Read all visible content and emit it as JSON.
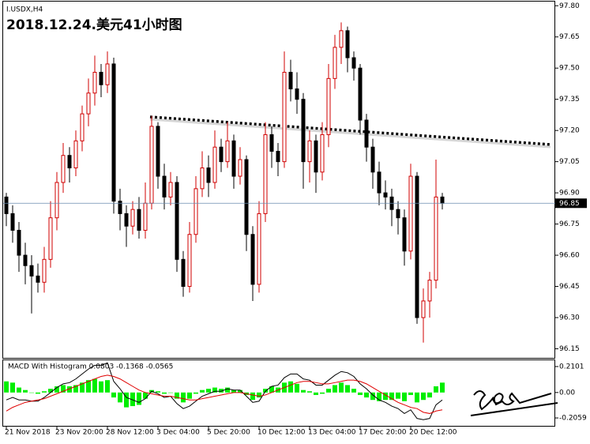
{
  "chart_data": [
    {
      "type": "candlestick",
      "title": "I.USDX,H4",
      "annotation": "2018.12.24.美元41小时图",
      "categories": [
        "21 Nov 2018",
        null,
        null,
        null,
        null,
        null,
        null,
        null,
        "23 Nov 20:00",
        null,
        null,
        null,
        null,
        null,
        null,
        null,
        "28 Nov 12:00",
        null,
        null,
        null,
        null,
        null,
        null,
        null,
        "3 Dec 04:00",
        null,
        null,
        null,
        null,
        null,
        null,
        null,
        "5 Dec 20:00",
        null,
        null,
        null,
        null,
        null,
        null,
        null,
        "10 Dec 12:00",
        null,
        null,
        null,
        null,
        null,
        null,
        null,
        "13 Dec 04:00",
        null,
        null,
        null,
        null,
        null,
        null,
        null,
        "17 Dec 20:00",
        null,
        null,
        null,
        null,
        null,
        null,
        null,
        "20 Dec 12:00",
        null,
        null,
        null,
        null,
        null
      ],
      "open": [
        96.88,
        96.8,
        96.72,
        96.6,
        96.55,
        96.5,
        96.47,
        96.58,
        96.78,
        96.95,
        97.08,
        97.02,
        97.15,
        97.28,
        97.38,
        97.48,
        97.42,
        97.52,
        96.86,
        96.8,
        96.74,
        96.82,
        96.72,
        96.85,
        97.22,
        96.98,
        96.88,
        96.95,
        96.58,
        96.45,
        96.7,
        96.92,
        97.02,
        96.95,
        97.12,
        97.05,
        97.15,
        96.98,
        97.06,
        96.7,
        96.46,
        96.8,
        97.18,
        97.1,
        97.05,
        97.48,
        97.4,
        97.35,
        97.05,
        97.15,
        97.0,
        97.18,
        97.45,
        97.6,
        97.68,
        97.55,
        97.5,
        97.25,
        97.12,
        97.0,
        96.9,
        96.88,
        96.82,
        96.78,
        96.62,
        96.98,
        96.3,
        96.38,
        96.48,
        96.88
      ],
      "high": [
        96.9,
        96.84,
        96.76,
        96.66,
        96.6,
        96.56,
        96.64,
        96.86,
        97.0,
        97.14,
        97.12,
        97.2,
        97.32,
        97.45,
        97.56,
        97.52,
        97.58,
        97.55,
        96.92,
        96.84,
        96.86,
        96.88,
        96.95,
        97.27,
        97.24,
        97.04,
        97.0,
        96.98,
        96.62,
        96.76,
        96.98,
        97.1,
        97.08,
        97.2,
        97.16,
        97.24,
        97.18,
        97.12,
        97.08,
        96.74,
        96.86,
        97.24,
        97.22,
        97.14,
        97.58,
        97.54,
        97.48,
        97.38,
        97.2,
        97.18,
        97.24,
        97.52,
        97.66,
        97.72,
        97.7,
        97.58,
        97.52,
        97.28,
        97.16,
        97.05,
        96.96,
        96.92,
        96.86,
        96.82,
        97.04,
        97.0,
        96.44,
        96.52,
        97.06,
        96.9
      ],
      "low": [
        96.74,
        96.66,
        96.52,
        96.46,
        96.32,
        96.42,
        96.42,
        96.54,
        96.72,
        96.9,
        96.95,
        96.98,
        97.1,
        97.22,
        97.32,
        97.36,
        97.38,
        96.8,
        96.72,
        96.64,
        96.7,
        96.68,
        96.68,
        96.82,
        96.92,
        96.82,
        96.84,
        96.52,
        96.4,
        96.42,
        96.66,
        96.88,
        96.88,
        96.92,
        97.0,
        97.02,
        96.92,
        96.94,
        96.62,
        96.38,
        96.42,
        96.76,
        97.02,
        96.98,
        97.02,
        97.34,
        97.28,
        96.92,
        96.95,
        96.9,
        96.96,
        97.12,
        97.4,
        97.52,
        97.48,
        97.44,
        97.18,
        97.05,
        96.92,
        96.84,
        96.82,
        96.74,
        96.7,
        96.55,
        96.58,
        96.27,
        96.18,
        96.3,
        96.44,
        96.82
      ],
      "close": [
        96.8,
        96.72,
        96.6,
        96.55,
        96.5,
        96.47,
        96.58,
        96.78,
        96.95,
        97.08,
        97.02,
        97.15,
        97.28,
        97.38,
        97.48,
        97.42,
        97.52,
        96.86,
        96.8,
        96.74,
        96.82,
        96.72,
        96.85,
        97.22,
        96.98,
        96.88,
        96.95,
        96.58,
        96.45,
        96.7,
        96.92,
        97.02,
        96.95,
        97.12,
        97.05,
        97.15,
        96.98,
        97.06,
        96.7,
        96.46,
        96.8,
        97.18,
        97.1,
        97.05,
        97.48,
        97.4,
        97.35,
        97.05,
        97.15,
        97.0,
        97.18,
        97.45,
        97.6,
        97.68,
        97.55,
        97.5,
        97.25,
        97.12,
        97.0,
        96.9,
        96.88,
        96.82,
        96.78,
        96.62,
        96.98,
        96.3,
        96.38,
        96.48,
        96.88,
        96.85
      ],
      "up_color": "#d00000",
      "down_color": "#000000",
      "last_price": 96.85,
      "ylim": [
        96.11,
        97.82
      ],
      "yticks": [
        {
          "value": 97.8,
          "label": "97.80"
        },
        97.65,
        {
          "value": 97.5,
          "label": "97.50"
        },
        97.35,
        {
          "value": 97.2,
          "label": "97.20"
        },
        97.05,
        {
          "value": 96.9,
          "label": "96.90"
        },
        96.75,
        {
          "value": 96.6,
          "label": "96.60"
        },
        96.45,
        {
          "value": 96.3,
          "label": "96.30"
        },
        96.15
      ]
    },
    {
      "type": "macd",
      "title": "MACD With Histogram 0.0803 -0.1368 -0.0565",
      "series": [
        {
          "kind": "histogram",
          "color": "#00ee00",
          "values": [
            0.09,
            0.08,
            0.04,
            0.02,
            0.0,
            -0.01,
            0.01,
            0.03,
            0.05,
            0.06,
            0.05,
            0.06,
            0.08,
            0.1,
            0.11,
            0.09,
            0.1,
            -0.04,
            -0.08,
            -0.12,
            -0.11,
            -0.1,
            -0.05,
            0.02,
            0.01,
            -0.01,
            0.0,
            -0.05,
            -0.08,
            -0.05,
            -0.01,
            0.02,
            0.03,
            0.04,
            0.03,
            0.04,
            0.02,
            0.02,
            -0.02,
            -0.06,
            -0.04,
            0.03,
            0.05,
            0.04,
            0.08,
            0.09,
            0.07,
            0.02,
            0.01,
            -0.02,
            -0.01,
            0.03,
            0.06,
            0.08,
            0.06,
            0.03,
            -0.02,
            -0.04,
            -0.06,
            -0.07,
            -0.06,
            -0.06,
            -0.05,
            -0.07,
            -0.02,
            -0.08,
            -0.06,
            -0.04,
            0.05,
            0.08
          ]
        },
        {
          "kind": "line",
          "color": "#000000",
          "values": [
            -0.06,
            -0.04,
            -0.06,
            -0.06,
            -0.07,
            -0.07,
            -0.04,
            0.0,
            0.04,
            0.07,
            0.08,
            0.11,
            0.15,
            0.19,
            0.22,
            0.22,
            0.24,
            0.09,
            0.03,
            -0.04,
            -0.06,
            -0.08,
            -0.05,
            0.01,
            -0.01,
            -0.04,
            -0.03,
            -0.09,
            -0.13,
            -0.11,
            -0.07,
            -0.03,
            -0.01,
            0.01,
            0.01,
            0.03,
            0.02,
            0.02,
            -0.03,
            -0.08,
            -0.07,
            0.01,
            0.05,
            0.06,
            0.12,
            0.15,
            0.15,
            0.11,
            0.1,
            0.06,
            0.06,
            0.1,
            0.14,
            0.17,
            0.16,
            0.13,
            0.07,
            0.03,
            -0.02,
            -0.06,
            -0.08,
            -0.11,
            -0.13,
            -0.17,
            -0.14,
            -0.21,
            -0.22,
            -0.21,
            -0.1,
            -0.06
          ]
        },
        {
          "kind": "line",
          "color": "#e00000",
          "values": [
            -0.15,
            -0.12,
            -0.1,
            -0.08,
            -0.07,
            -0.06,
            -0.05,
            -0.03,
            -0.01,
            0.01,
            0.03,
            0.05,
            0.07,
            0.09,
            0.11,
            0.13,
            0.14,
            0.13,
            0.11,
            0.08,
            0.05,
            0.02,
            0.0,
            -0.01,
            -0.02,
            -0.03,
            -0.03,
            -0.04,
            -0.05,
            -0.06,
            -0.06,
            -0.05,
            -0.04,
            -0.03,
            -0.02,
            -0.01,
            0.0,
            0.0,
            -0.01,
            -0.02,
            -0.03,
            -0.02,
            0.0,
            0.02,
            0.04,
            0.06,
            0.08,
            0.09,
            0.09,
            0.08,
            0.07,
            0.07,
            0.08,
            0.09,
            0.1,
            0.1,
            0.09,
            0.07,
            0.04,
            0.01,
            -0.02,
            -0.05,
            -0.08,
            -0.1,
            -0.12,
            -0.13,
            -0.16,
            -0.17,
            -0.15,
            -0.14
          ]
        }
      ],
      "ylim": [
        -0.276,
        0.261
      ],
      "yticks": [
        0.2101,
        {
          "value": 0,
          "label": "0.00"
        },
        -0.2059
      ]
    }
  ]
}
